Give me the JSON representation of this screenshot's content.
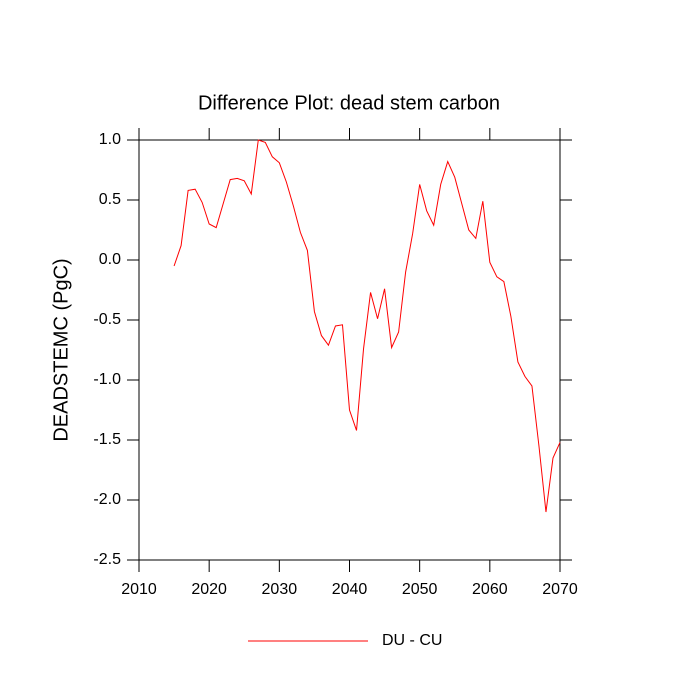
{
  "chart_data": {
    "type": "line",
    "title": "Difference Plot: dead stem carbon",
    "y_label": "DEADSTEMC  (PgC)",
    "x": [
      2015,
      2016,
      2017,
      2018,
      2019,
      2020,
      2021,
      2022,
      2023,
      2024,
      2025,
      2026,
      2027,
      2028,
      2029,
      2030,
      2031,
      2032,
      2033,
      2034,
      2035,
      2036,
      2037,
      2038,
      2039,
      2040,
      2041,
      2042,
      2043,
      2044,
      2045,
      2046,
      2047,
      2048,
      2049,
      2050,
      2051,
      2052,
      2053,
      2054,
      2055,
      2056,
      2057,
      2058,
      2059,
      2060,
      2061,
      2062,
      2063,
      2064,
      2065,
      2066,
      2067,
      2068,
      2069,
      2070
    ],
    "series": [
      {
        "name": "DU - CU",
        "color": "#ff0000",
        "values": [
          -0.05,
          0.12,
          0.58,
          0.59,
          0.48,
          0.3,
          0.27,
          0.47,
          0.67,
          0.68,
          0.66,
          0.55,
          1.0,
          0.98,
          0.86,
          0.81,
          0.65,
          0.45,
          0.23,
          0.08,
          -0.43,
          -0.63,
          -0.71,
          -0.55,
          -0.54,
          -1.25,
          -1.42,
          -0.74,
          -0.27,
          -0.49,
          -0.24,
          -0.73,
          -0.6,
          -0.1,
          0.22,
          0.63,
          0.41,
          0.29,
          0.63,
          0.82,
          0.69,
          0.47,
          0.25,
          0.18,
          0.49,
          -0.02,
          -0.14,
          -0.18,
          -0.47,
          -0.85,
          -0.97,
          -1.05,
          -1.55,
          -2.1,
          -1.65,
          -1.52
        ]
      }
    ],
    "xlim": [
      2010,
      2070
    ],
    "xticks": [
      2010,
      2020,
      2030,
      2040,
      2050,
      2060,
      2070
    ],
    "ylim": [
      -2.5,
      1.0
    ],
    "yticks": [
      {
        "value": -2.5,
        "label": "-2.5"
      },
      {
        "value": -2.0,
        "label": "-2.0"
      },
      {
        "value": -1.5,
        "label": "-1.5"
      },
      {
        "value": -1.0,
        "label": "-1.0"
      },
      {
        "value": -0.5,
        "label": "-0.5"
      },
      {
        "value": 0.0,
        "label": "0.0"
      },
      {
        "value": 0.5,
        "label": "0.5"
      },
      {
        "value": 1.0,
        "label": "1.0"
      }
    ],
    "grid": false
  }
}
